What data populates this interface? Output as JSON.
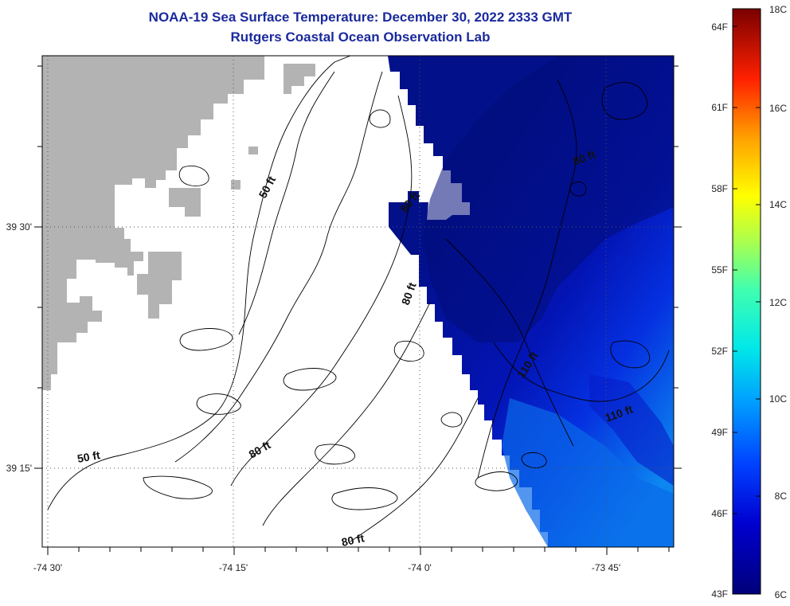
{
  "header": {
    "title": "NOAA-19 Sea Surface Temperature:  December 30, 2022 2333 GMT",
    "subtitle": "Rutgers Coastal Ocean Observation Lab"
  },
  "axes": {
    "lon_labels": [
      "-74 30'",
      "-74 15'",
      "-74 0'",
      "-73 45'"
    ],
    "lat_labels": [
      "39 30'",
      "39 15'"
    ]
  },
  "contour_labels": [
    "50 ft",
    "50 ft",
    "80 ft",
    "80 ft",
    "80 ft",
    "80 ft",
    "80 ft",
    "110 ft",
    "110 ft"
  ],
  "colorbar": {
    "fahrenheit": [
      "64F",
      "61F",
      "58F",
      "55F",
      "52F",
      "49F",
      "46F",
      "43F"
    ],
    "celsius": [
      "18C",
      "16C",
      "14C",
      "12C",
      "10C",
      "8C",
      "6C"
    ]
  },
  "colors": {
    "land": "#b3b3b3",
    "title": "#1a2a9c",
    "sst_cold": "#02108a",
    "sst_warm": "#0c86f0"
  }
}
